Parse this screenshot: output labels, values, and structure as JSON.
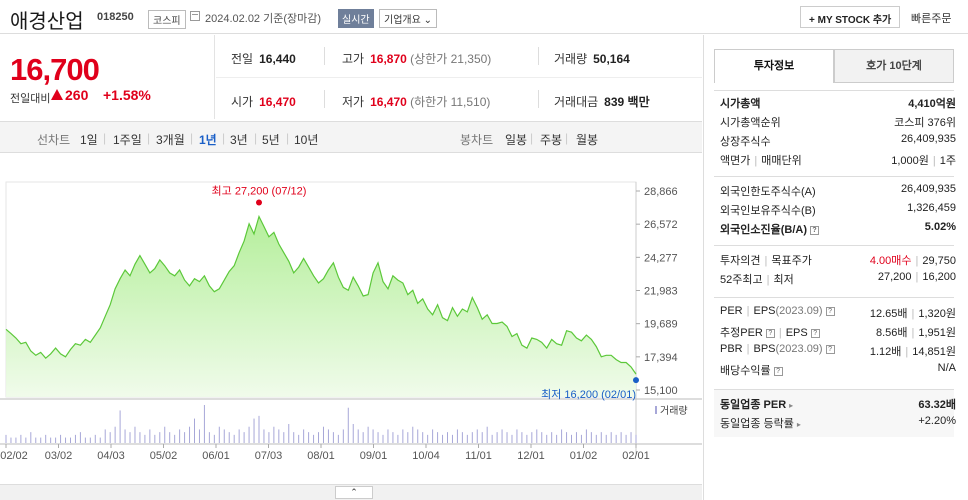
{
  "header": {
    "name": "애경산업",
    "code": "018250",
    "market": "코스피",
    "date": "2024.02.02  기준(장마감)",
    "realtime": "실시간",
    "company_overview": "기업개요",
    "mystock_button": "+ MY STOCK 추가",
    "fast_order": "빠른주문"
  },
  "price": {
    "current": "16,700",
    "change_label": "전일대비",
    "change": "260",
    "change_pct": "+1.58%",
    "up_color": "#e0001b"
  },
  "stats": {
    "prev_close_label": "전일",
    "prev_close": "16,440",
    "high_label": "고가",
    "high": "16,870",
    "upper_limit": "(상한가 21,350)",
    "volume_label": "거래량",
    "volume": "50,164",
    "open_label": "시가",
    "open": "16,470",
    "low_label": "저가",
    "low": "16,470",
    "lower_limit": "(하한가 11,510)",
    "amount_label": "거래대금",
    "amount": "839 백만"
  },
  "period_tabs": {
    "line_label": "선차트",
    "items": [
      "1일",
      "1주일",
      "3개월",
      "1년",
      "3년",
      "5년",
      "10년"
    ],
    "selected": "1년",
    "candle_label": "봉차트",
    "candle_items": [
      "일봉",
      "주봉",
      "월봉"
    ]
  },
  "chart_data": {
    "type": "area",
    "x_ticks": [
      "02/02",
      "03/02",
      "04/03",
      "05/02",
      "06/01",
      "07/03",
      "08/01",
      "09/01",
      "10/04",
      "11/01",
      "12/01",
      "01/02",
      "02/01"
    ],
    "y_ticks": [
      "28,866",
      "26,572",
      "24,277",
      "21,983",
      "19,689",
      "17,394",
      "15,100"
    ],
    "ylim": [
      15100,
      28866
    ],
    "max_label": "최고 27,200 (07/12)",
    "min_label": "최저 16,200 (02/01)",
    "volume_label": "거래량",
    "series": [
      {
        "values": [
          19300,
          19000,
          18700,
          18300,
          18400,
          17800,
          17500,
          17700,
          17300,
          17600,
          18000,
          17600,
          17400,
          17900,
          18300,
          18200,
          18600,
          18400,
          18900,
          19400,
          20200,
          21000,
          22100,
          22800,
          23400,
          23000,
          23800,
          24400,
          23800,
          23200,
          23500,
          24100,
          23700,
          23200,
          23000,
          23400,
          22700,
          22300,
          22800,
          22600,
          23000,
          22300,
          21900,
          22100,
          22700,
          23300,
          23700,
          24600,
          25400,
          26600,
          25900,
          27100,
          26400,
          25700,
          26000,
          25200,
          24600,
          24000,
          23200,
          23600,
          24200,
          23600,
          23000,
          22500,
          22800,
          23400,
          23900,
          22900,
          22200,
          22000,
          22900,
          22300,
          21600,
          21700,
          23200,
          23900,
          22600,
          22100,
          23000,
          22700,
          22500,
          21700,
          22000,
          21100,
          21400,
          20700,
          20300,
          21000,
          20100,
          19900,
          20800,
          20200,
          20700,
          20500,
          21500,
          20800,
          20000,
          20300,
          19700,
          19700,
          19800,
          19500,
          18800,
          19000,
          18200,
          18000,
          18700,
          18600,
          18400,
          18000,
          18600,
          18300,
          18200,
          19200,
          19100,
          18700,
          18500,
          18900,
          18600,
          18100,
          17400,
          17500,
          17500,
          17200,
          17000,
          17000,
          16700,
          16200
        ],
        "volume": [
          3,
          2,
          2,
          3,
          2,
          4,
          2,
          2,
          3,
          2,
          2,
          3,
          2,
          2,
          3,
          4,
          2,
          2,
          3,
          2,
          5,
          4,
          6,
          12,
          5,
          4,
          6,
          4,
          3,
          5,
          3,
          4,
          6,
          4,
          3,
          5,
          4,
          6,
          9,
          5,
          14,
          4,
          3,
          6,
          5,
          4,
          3,
          5,
          4,
          6,
          9,
          10,
          5,
          4,
          6,
          5,
          4,
          7,
          4,
          3,
          5,
          4,
          3,
          4,
          6,
          5,
          4,
          3,
          5,
          13,
          7,
          5,
          4,
          6,
          5,
          4,
          3,
          5,
          4,
          3,
          5,
          4,
          6,
          5,
          4,
          3,
          5,
          4,
          3,
          4,
          3,
          5,
          4,
          3,
          4,
          5,
          4,
          6,
          3,
          4,
          5,
          4,
          3,
          5,
          4,
          3,
          4,
          5,
          4,
          3,
          4,
          3,
          5,
          4,
          3,
          4,
          3,
          5,
          4,
          3,
          4,
          3,
          4,
          3,
          4,
          3,
          4,
          3
        ]
      }
    ]
  },
  "right_panel": {
    "tab1": "투자정보",
    "tab2": "호가 10단계",
    "market_cap_label": "시가총액",
    "market_cap": "4,410억원",
    "market_cap_rank_label": "시가총액순위",
    "market_cap_rank": "코스피 376위",
    "shares_label": "상장주식수",
    "shares": "26,409,935",
    "par_label": "액면가",
    "par_unit_label": "매매단위",
    "par": "1,000원",
    "unit": "1주",
    "foreign_limit_label": "외국인한도주식수(A)",
    "foreign_limit": "26,409,935",
    "foreign_hold_label": "외국인보유주식수(B)",
    "foreign_hold": "1,326,459",
    "foreign_ratio_label": "외국인소진율(B/A)",
    "foreign_ratio": "5.02%",
    "opinion_label": "투자의견",
    "target_label": "목표주가",
    "opinion": "4.00매수",
    "target": "29,750",
    "w52_label": "52주최고",
    "w52_low_label": "최저",
    "w52_high": "27,200",
    "w52_low": "16,200",
    "per_label": "PER",
    "eps_label": "EPS",
    "eps_year": "(2023.09)",
    "per": "12.65배",
    "eps": "1,320원",
    "est_per_label": "추정PER",
    "est_eps_label": "EPS",
    "est_per": "8.56배",
    "est_eps": "1,951원",
    "pbr_label": "PBR",
    "bps_label": "BPS",
    "bps_year": "(2023.09)",
    "pbr": "1.12배",
    "bps": "14,851원",
    "div_label": "배당수익률",
    "div": "N/A",
    "ind_per_label": "동일업종 PER",
    "ind_per": "63.32배",
    "ind_rate_label": "동일업종 등락률",
    "ind_rate": "+2.20%"
  }
}
